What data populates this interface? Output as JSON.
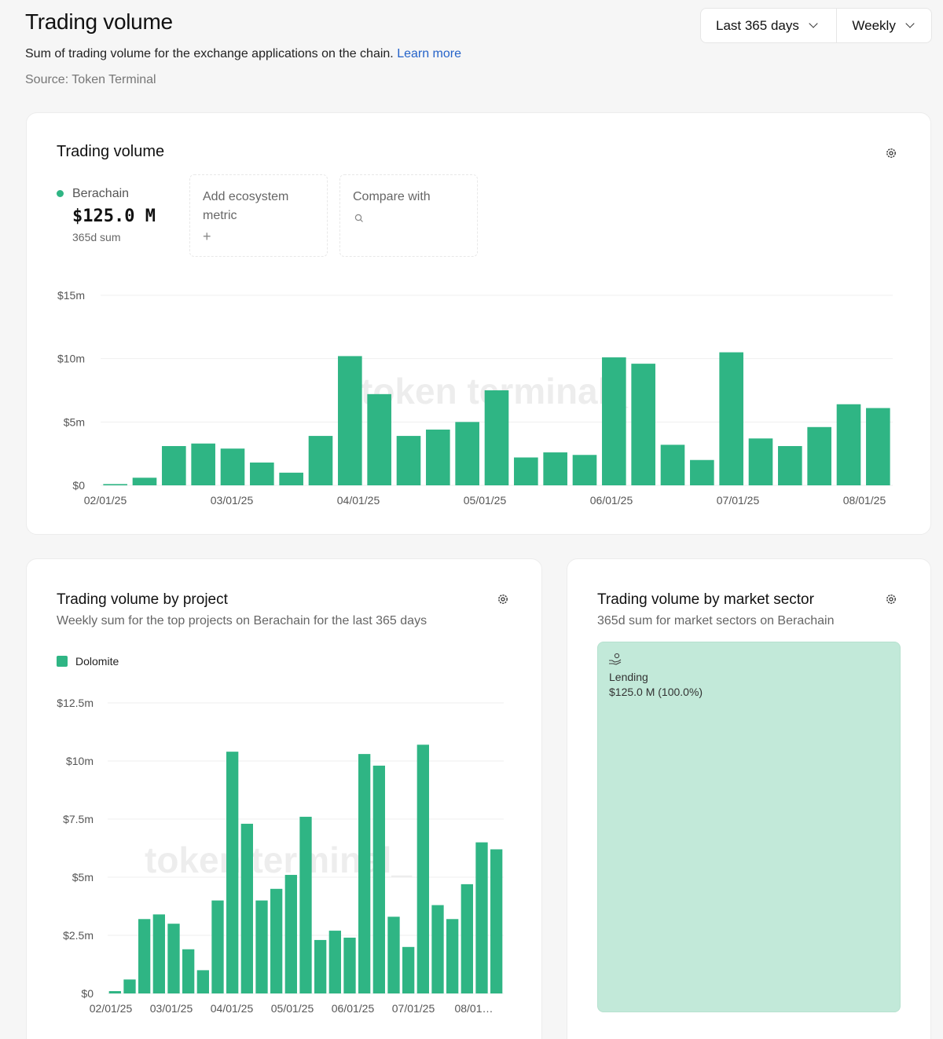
{
  "header": {
    "title": "Trading volume",
    "description": "Sum of trading volume for the exchange applications on the chain.",
    "learn_more": "Learn more",
    "source": "Source: Token Terminal",
    "range_label": "Last 365 days",
    "granularity_label": "Weekly"
  },
  "main_card": {
    "title": "Trading volume",
    "chain": {
      "name": "Berachain",
      "value": "$125.0 M",
      "sub": "365d sum",
      "color": "#2fb584"
    },
    "add_metric_label": "Add ecosystem metric",
    "add_metric_icon": "+",
    "compare_label": "Compare with",
    "watermark": "token terminal_"
  },
  "project_card": {
    "title": "Trading volume by project",
    "subtitle": "Weekly sum for the top projects on Berachain for the last 365 days",
    "legend": "Dolomite",
    "watermark": "token terminal_"
  },
  "sector_card": {
    "title": "Trading volume by market sector",
    "subtitle": "365d sum for market sectors on Berachain",
    "sector_label": "Lending",
    "sector_value": "$125.0 M (100.0%)",
    "sector_icon": "hand-coins-icon"
  },
  "colors": {
    "bar": "#2fb584",
    "link": "#2563c9",
    "treemap": "#c2e9d9"
  },
  "chart_data": [
    {
      "type": "bar",
      "title": "Trading volume",
      "series": [
        {
          "name": "Berachain",
          "values": [
            0.1,
            0.6,
            3.1,
            3.3,
            2.9,
            1.8,
            1.0,
            3.9,
            10.2,
            7.2,
            3.9,
            4.4,
            5.0,
            7.5,
            2.2,
            2.6,
            2.4,
            10.1,
            9.6,
            3.2,
            2.0,
            10.5,
            3.7,
            3.1,
            4.6,
            6.4,
            6.1
          ]
        }
      ],
      "x_tick_labels": [
        "02/01/25",
        "03/01/25",
        "04/01/25",
        "05/01/25",
        "06/01/25",
        "07/01/25",
        "08/01/25"
      ],
      "y_ticks": [
        "$0",
        "$5m",
        "$10m",
        "$15m"
      ],
      "ylim": [
        0,
        15
      ],
      "grid": true
    },
    {
      "type": "bar",
      "title": "Trading volume by project",
      "series": [
        {
          "name": "Dolomite",
          "values": [
            0.1,
            0.6,
            3.2,
            3.4,
            3.0,
            1.9,
            1.0,
            4.0,
            10.4,
            7.3,
            4.0,
            4.5,
            5.1,
            7.6,
            2.3,
            2.7,
            2.4,
            10.3,
            9.8,
            3.3,
            2.0,
            10.7,
            3.8,
            3.2,
            4.7,
            6.5,
            6.2
          ]
        }
      ],
      "x_tick_labels": [
        "02/01/25",
        "03/01/25",
        "04/01/25",
        "05/01/25",
        "06/01/25",
        "07/01/25",
        "08/01…"
      ],
      "y_ticks": [
        "$0",
        "$2.5m",
        "$5m",
        "$7.5m",
        "$10m",
        "$12.5m"
      ],
      "ylim": [
        0,
        12.5
      ],
      "grid": true
    },
    {
      "type": "heatmap",
      "title": "Trading volume by market sector",
      "categories": [
        "Lending"
      ],
      "values": [
        125.0
      ],
      "shares": [
        100.0
      ]
    }
  ]
}
